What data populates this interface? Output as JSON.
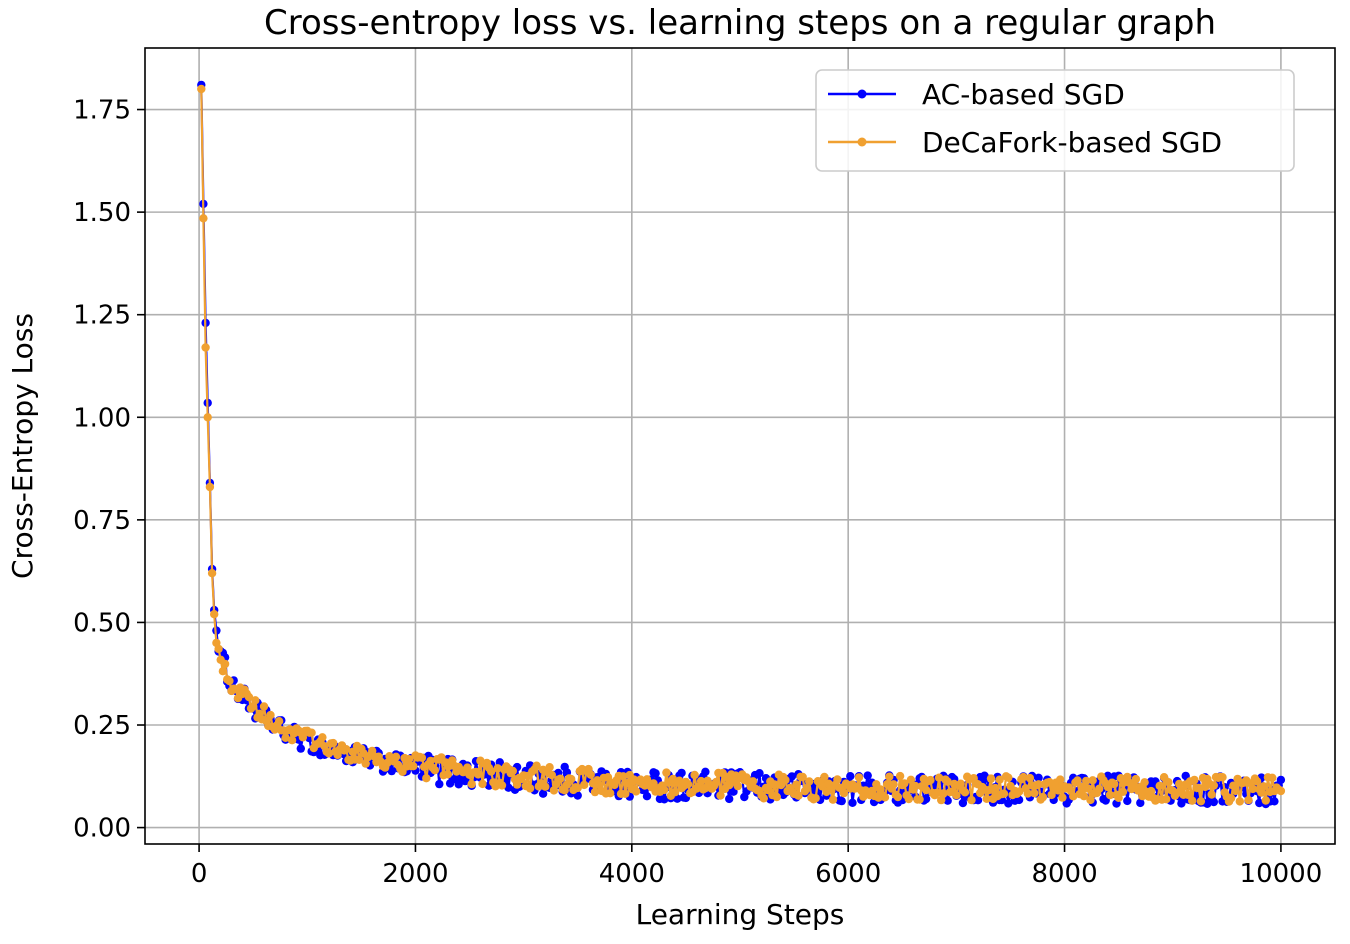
{
  "chart_data": {
    "type": "line",
    "title": "Cross-entropy loss vs. learning steps on a regular graph",
    "xlabel": "Learning Steps",
    "ylabel": "Cross-Entropy Loss",
    "xlim": [
      -500,
      10500
    ],
    "ylim": [
      -0.04,
      1.9
    ],
    "xticks": [
      0,
      2000,
      4000,
      6000,
      8000,
      10000
    ],
    "xtick_labels": [
      "0",
      "2000",
      "4000",
      "6000",
      "8000",
      "10000"
    ],
    "yticks": [
      0.0,
      0.25,
      0.5,
      0.75,
      1.0,
      1.25,
      1.5,
      1.75
    ],
    "ytick_labels": [
      "0.00",
      "0.25",
      "0.50",
      "0.75",
      "1.00",
      "1.25",
      "1.50",
      "1.75"
    ],
    "grid": true,
    "legend_position": "top-right",
    "x_range": [
      20,
      10000
    ],
    "n_points": 500,
    "series": [
      {
        "name": "AC-based SGD",
        "color": "#0000ff",
        "trend": {
          "start": 1.81,
          "knots": [
            [
              20,
              1.81
            ],
            [
              60,
              1.23
            ],
            [
              100,
              0.84
            ],
            [
              120,
              0.63
            ],
            [
              140,
              0.53
            ],
            [
              160,
              0.48
            ],
            [
              200,
              0.42
            ],
            [
              300,
              0.35
            ],
            [
              500,
              0.29
            ],
            [
              800,
              0.23
            ],
            [
              1200,
              0.19
            ],
            [
              1600,
              0.165
            ],
            [
              2000,
              0.145
            ],
            [
              3000,
              0.12
            ],
            [
              4000,
              0.105
            ],
            [
              5000,
              0.1
            ],
            [
              6000,
              0.095
            ],
            [
              8000,
              0.093
            ],
            [
              10000,
              0.09
            ]
          ]
        },
        "noise_amplitude": 0.035
      },
      {
        "name": "DeCaFork-based SGD",
        "color": "#f0a030",
        "trend": {
          "start": 1.8,
          "knots": [
            [
              20,
              1.8
            ],
            [
              60,
              1.17
            ],
            [
              100,
              0.83
            ],
            [
              120,
              0.62
            ],
            [
              140,
              0.52
            ],
            [
              160,
              0.45
            ],
            [
              200,
              0.41
            ],
            [
              300,
              0.35
            ],
            [
              500,
              0.295
            ],
            [
              800,
              0.235
            ],
            [
              1200,
              0.195
            ],
            [
              1600,
              0.17
            ],
            [
              2000,
              0.15
            ],
            [
              3000,
              0.123
            ],
            [
              4000,
              0.108
            ],
            [
              5000,
              0.102
            ],
            [
              6000,
              0.097
            ],
            [
              8000,
              0.095
            ],
            [
              10000,
              0.093
            ]
          ]
        },
        "noise_amplitude": 0.03
      }
    ]
  }
}
